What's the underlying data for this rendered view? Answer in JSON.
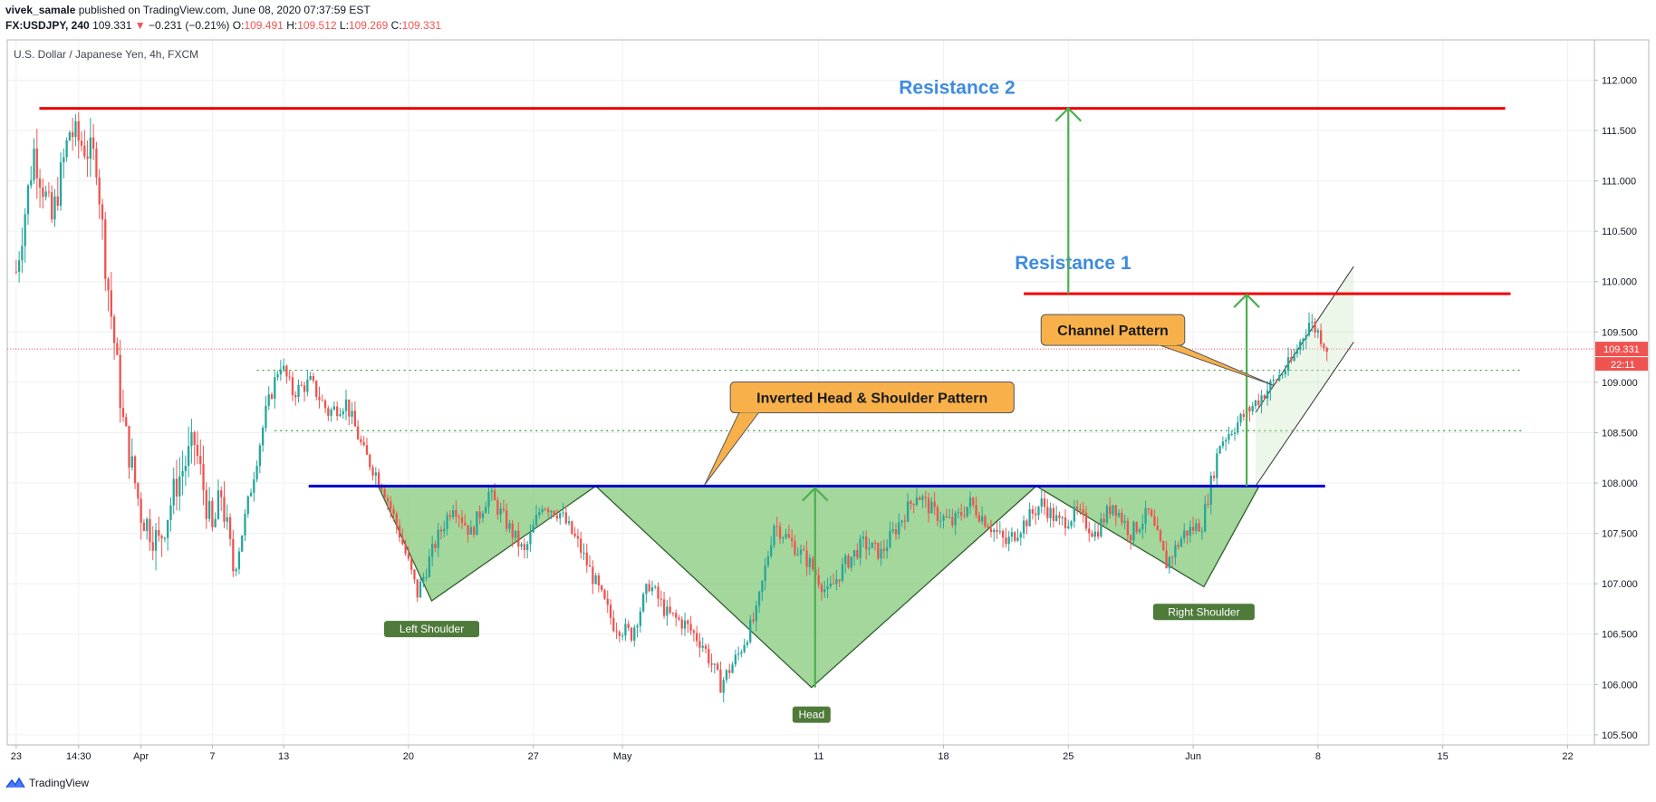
{
  "header": {
    "author": "vivek_samale",
    "published_text": "published on TradingView.com, June 08, 2020 07:37:59 EST",
    "symbol": "FX:USDJPY, 240",
    "last": "109.331",
    "change": "−0.231 (−0.21%)",
    "o_label": "O:",
    "o": "109.491",
    "h_label": "H:",
    "h": "109.512",
    "l_label": "L:",
    "l": "109.269",
    "c_label": "C:",
    "c": "109.331"
  },
  "footer": {
    "brand": "TradingView",
    "icon": "tradingview-logo-icon"
  },
  "colors": {
    "up": "#26a69a",
    "down": "#ef5350",
    "resistance": "#f00000",
    "neckline": "#0000cc",
    "pattern_fill": "#86c97a",
    "arrow": "#4caf50",
    "callout_fill": "#f8b14a",
    "label_fill": "#4e7a3a",
    "title_blue": "#3d8be0",
    "price_badge": "#ef5350"
  },
  "chart_data": {
    "type": "candlestick",
    "title": "U.S. Dollar / Japanese Yen, 4h, FXCM",
    "ylim": [
      105.4,
      112.4
    ],
    "y_ticks": [
      "105.500",
      "106.000",
      "106.500",
      "107.000",
      "107.500",
      "108.000",
      "108.500",
      "109.000",
      "109.500",
      "110.000",
      "110.500",
      "111.000",
      "111.500",
      "112.000"
    ],
    "x_ticks": [
      {
        "label": "23",
        "day": 0
      },
      {
        "label": "14:30",
        "day": 3.5
      },
      {
        "label": "Apr",
        "day": 7
      },
      {
        "label": "7",
        "day": 11
      },
      {
        "label": "13",
        "day": 15
      },
      {
        "label": "20",
        "day": 22
      },
      {
        "label": "27",
        "day": 29
      },
      {
        "label": "May",
        "day": 34
      },
      {
        "label": "11",
        "day": 45
      },
      {
        "label": "18",
        "day": 52
      },
      {
        "label": "25",
        "day": 59
      },
      {
        "label": "Jun",
        "day": 66
      },
      {
        "label": "8",
        "day": 73
      },
      {
        "label": "15",
        "day": 80
      },
      {
        "label": "22",
        "day": 87
      }
    ],
    "x_range_days": [
      -0.5,
      88.5
    ],
    "last_price": "109.331",
    "countdown": "22:11",
    "price_path": [
      {
        "day": 0,
        "price": 110.1
      },
      {
        "day": 1,
        "price": 111.3
      },
      {
        "day": 2,
        "price": 110.6
      },
      {
        "day": 3,
        "price": 111.5
      },
      {
        "day": 4.5,
        "price": 111.2
      },
      {
        "day": 5,
        "price": 110.2
      },
      {
        "day": 6,
        "price": 108.6
      },
      {
        "day": 7,
        "price": 107.7
      },
      {
        "day": 8,
        "price": 107.4
      },
      {
        "day": 9,
        "price": 108.0
      },
      {
        "day": 10,
        "price": 108.4
      },
      {
        "day": 11,
        "price": 107.5
      },
      {
        "day": 11.5,
        "price": 107.9
      },
      {
        "day": 12.2,
        "price": 107.1
      },
      {
        "day": 13,
        "price": 107.8
      },
      {
        "day": 14,
        "price": 108.7
      },
      {
        "day": 14.8,
        "price": 109.2
      },
      {
        "day": 15.5,
        "price": 108.9
      },
      {
        "day": 16.5,
        "price": 109.0
      },
      {
        "day": 17.5,
        "price": 108.7
      },
      {
        "day": 18.5,
        "price": 108.8
      },
      {
        "day": 19.5,
        "price": 108.3
      },
      {
        "day": 20.5,
        "price": 108.0
      },
      {
        "day": 21.5,
        "price": 107.5
      },
      {
        "day": 22.5,
        "price": 106.9
      },
      {
        "day": 23.5,
        "price": 107.4
      },
      {
        "day": 24.5,
        "price": 107.8
      },
      {
        "day": 25.5,
        "price": 107.5
      },
      {
        "day": 26.5,
        "price": 107.9
      },
      {
        "day": 27.5,
        "price": 107.6
      },
      {
        "day": 28.5,
        "price": 107.3
      },
      {
        "day": 29.5,
        "price": 107.8
      },
      {
        "day": 30.5,
        "price": 107.7
      },
      {
        "day": 31.5,
        "price": 107.4
      },
      {
        "day": 32.5,
        "price": 107.0
      },
      {
        "day": 33.5,
        "price": 106.6
      },
      {
        "day": 34.5,
        "price": 106.5
      },
      {
        "day": 35.5,
        "price": 107.0
      },
      {
        "day": 36.5,
        "price": 106.7
      },
      {
        "day": 37.5,
        "price": 106.6
      },
      {
        "day": 38.5,
        "price": 106.4
      },
      {
        "day": 39.5,
        "price": 106.0
      },
      {
        "day": 40.5,
        "price": 106.3
      },
      {
        "day": 41.5,
        "price": 106.7
      },
      {
        "day": 42.5,
        "price": 107.6
      },
      {
        "day": 43.5,
        "price": 107.4
      },
      {
        "day": 44.5,
        "price": 107.2
      },
      {
        "day": 45.5,
        "price": 106.9
      },
      {
        "day": 46.5,
        "price": 107.2
      },
      {
        "day": 47.5,
        "price": 107.4
      },
      {
        "day": 48.5,
        "price": 107.3
      },
      {
        "day": 49.5,
        "price": 107.6
      },
      {
        "day": 50.5,
        "price": 107.9
      },
      {
        "day": 51.5,
        "price": 107.7
      },
      {
        "day": 52.5,
        "price": 107.6
      },
      {
        "day": 53.5,
        "price": 107.8
      },
      {
        "day": 54.5,
        "price": 107.6
      },
      {
        "day": 55.5,
        "price": 107.4
      },
      {
        "day": 56.5,
        "price": 107.6
      },
      {
        "day": 57.5,
        "price": 107.8
      },
      {
        "day": 58.5,
        "price": 107.6
      },
      {
        "day": 59.5,
        "price": 107.7
      },
      {
        "day": 60.5,
        "price": 107.5
      },
      {
        "day": 61.5,
        "price": 107.8
      },
      {
        "day": 62.5,
        "price": 107.5
      },
      {
        "day": 63.5,
        "price": 107.7
      },
      {
        "day": 64.5,
        "price": 107.2
      },
      {
        "day": 65.5,
        "price": 107.5
      },
      {
        "day": 66.5,
        "price": 107.6
      },
      {
        "day": 67.5,
        "price": 108.4
      },
      {
        "day": 68.5,
        "price": 108.6
      },
      {
        "day": 69.5,
        "price": 108.8
      },
      {
        "day": 70.5,
        "price": 109.0
      },
      {
        "day": 71.5,
        "price": 109.2
      },
      {
        "day": 72.5,
        "price": 109.6
      },
      {
        "day": 73.0,
        "price": 109.5
      },
      {
        "day": 73.5,
        "price": 109.35
      }
    ],
    "resistance_lines": [
      {
        "label": "Resistance 2",
        "price": 111.72,
        "from_day": 1.3,
        "to_day": 83.5
      },
      {
        "label": "Resistance 1",
        "price": 109.88,
        "from_day": 56.5,
        "to_day": 83.8
      }
    ],
    "neckline": {
      "price": 107.97,
      "from_day": 16.4,
      "to_day": 73.4
    },
    "dotted_levels": [
      {
        "price": 109.12,
        "from_day": 13.5,
        "to_day": 84.5
      },
      {
        "price": 108.52,
        "from_day": 14.5,
        "to_day": 84.5
      }
    ],
    "pattern_triangles": [
      {
        "points": [
          [
            20.3,
            107.97
          ],
          [
            23.3,
            106.83
          ],
          [
            32.5,
            107.97
          ]
        ]
      },
      {
        "points": [
          [
            32.5,
            107.97
          ],
          [
            44.6,
            105.97
          ],
          [
            57.2,
            107.97
          ]
        ]
      },
      {
        "points": [
          [
            57.2,
            107.97
          ],
          [
            66.6,
            106.97
          ],
          [
            69.7,
            107.97
          ]
        ]
      }
    ],
    "pattern_labels": [
      {
        "text": "Left Shoulder",
        "day": 23.3,
        "price": 106.55
      },
      {
        "text": "Head",
        "day": 44.6,
        "price": 105.7
      },
      {
        "text": "Right Shoulder",
        "day": 66.6,
        "price": 106.72
      }
    ],
    "arrows": [
      {
        "day": 44.8,
        "from": 105.97,
        "to": 107.95
      },
      {
        "day": 59.0,
        "from": 109.88,
        "to": 111.72
      },
      {
        "day": 69.0,
        "from": 107.97,
        "to": 109.87
      }
    ],
    "channel": {
      "lower": [
        [
          69.5,
          107.97
        ],
        [
          75.0,
          109.4
        ]
      ],
      "upper": [
        [
          69.5,
          108.7
        ],
        [
          75.0,
          110.15
        ]
      ]
    },
    "callouts": [
      {
        "text": "Inverted Head & Shoulder Pattern",
        "day": 48.0,
        "price": 108.85,
        "pointer_day": 38.6,
        "pointer_price": 107.98
      },
      {
        "text": "Channel Pattern",
        "day": 61.5,
        "price": 109.52,
        "pointer_day": 70.5,
        "pointer_price": 108.97
      }
    ]
  }
}
